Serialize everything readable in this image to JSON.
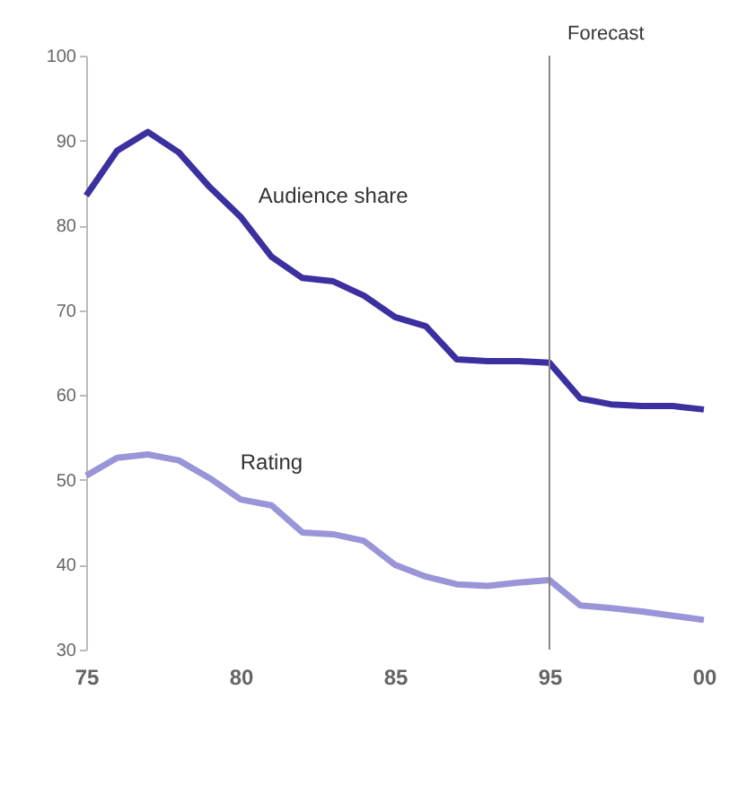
{
  "chart_data": {
    "type": "line",
    "categories": [
      "75",
      null,
      null,
      null,
      null,
      "80",
      null,
      null,
      null,
      null,
      "85",
      null,
      null,
      null,
      null,
      "95",
      null,
      null,
      null,
      null,
      "00"
    ],
    "series": [
      {
        "name": "Audience share",
        "color": "#3c2fa0",
        "values": [
          83.5,
          88.8,
          91,
          88.6,
          84.5,
          81,
          76.3,
          73.8,
          73.4,
          71.7,
          69.2,
          68.1,
          64.2,
          64,
          64,
          63.8,
          59.6,
          58.9,
          58.7,
          58.7,
          58.3
        ]
      },
      {
        "name": "Rating",
        "color": "#9a94d8",
        "values": [
          50.5,
          52.6,
          53,
          52.3,
          50.2,
          47.7,
          47,
          43.8,
          43.6,
          42.8,
          40,
          38.6,
          37.7,
          37.5,
          37.9,
          38.2,
          35.2,
          34.9,
          34.5,
          34,
          33.5
        ]
      }
    ],
    "ylim": [
      30,
      100
    ],
    "yticks": [
      30,
      40,
      50,
      60,
      70,
      80,
      90,
      100
    ],
    "ref_lines": [
      {
        "axis": "x",
        "value": "95",
        "label": "Forecast",
        "color": "#888888"
      }
    ],
    "legend": false,
    "grid": false,
    "marker": "none",
    "line_style": "solid"
  }
}
